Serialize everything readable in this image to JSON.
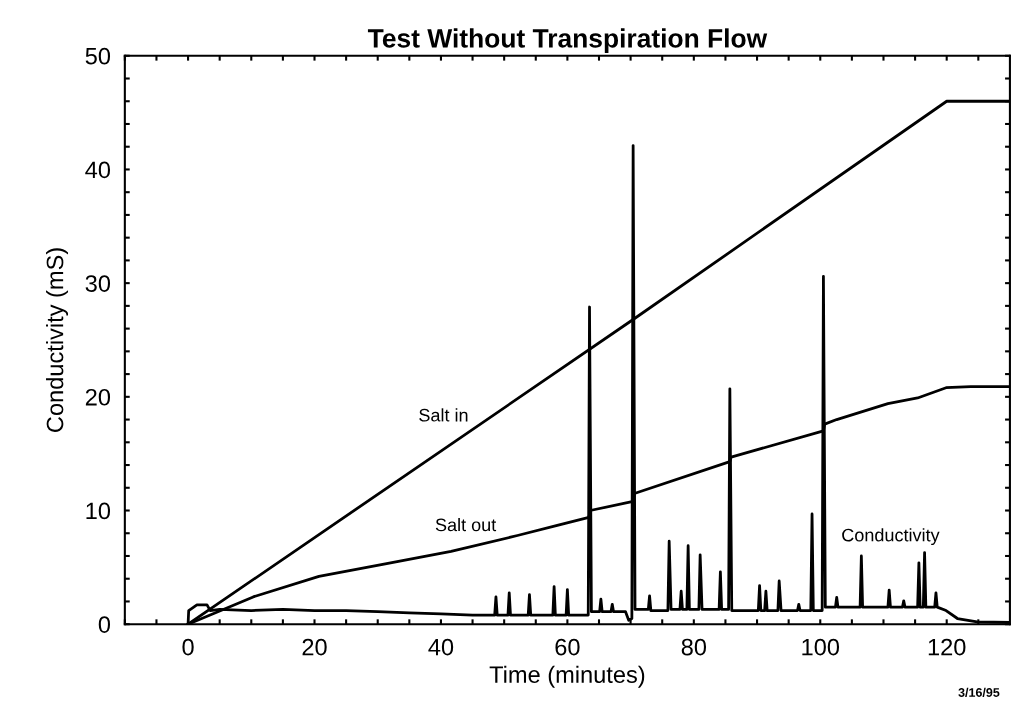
{
  "chart_data": {
    "type": "line",
    "title": "Test Without Transpiration Flow",
    "xlabel": "Time (minutes)",
    "ylabel": "Conductivity (mS)",
    "xlim": [
      -10,
      130
    ],
    "ylim": [
      0,
      50
    ],
    "xticks": [
      {
        "value": -10,
        "label": null
      },
      {
        "value": -5,
        "label": null
      },
      0,
      {
        "value": 5,
        "label": null
      },
      {
        "value": 10,
        "label": null
      },
      {
        "value": 15,
        "label": null
      },
      20,
      {
        "value": 25,
        "label": null
      },
      {
        "value": 30,
        "label": null
      },
      {
        "value": 35,
        "label": null
      },
      40,
      {
        "value": 45,
        "label": null
      },
      {
        "value": 50,
        "label": null
      },
      {
        "value": 55,
        "label": null
      },
      60,
      {
        "value": 65,
        "label": null
      },
      {
        "value": 70,
        "label": null
      },
      {
        "value": 75,
        "label": null
      },
      80,
      {
        "value": 85,
        "label": null
      },
      {
        "value": 90,
        "label": null
      },
      {
        "value": 95,
        "label": null
      },
      100,
      {
        "value": 105,
        "label": null
      },
      {
        "value": 110,
        "label": null
      },
      {
        "value": 115,
        "label": null
      },
      120,
      {
        "value": 125,
        "label": null
      }
    ],
    "yticks": [
      0,
      {
        "value": 2,
        "label": null
      },
      {
        "value": 4,
        "label": null
      },
      {
        "value": 6,
        "label": null
      },
      {
        "value": 8,
        "label": null
      },
      10,
      {
        "value": 12,
        "label": null
      },
      {
        "value": 14,
        "label": null
      },
      {
        "value": 16,
        "label": null
      },
      {
        "value": 18,
        "label": null
      },
      20,
      {
        "value": 22,
        "label": null
      },
      {
        "value": 24,
        "label": null
      },
      {
        "value": 26,
        "label": null
      },
      {
        "value": 28,
        "label": null
      },
      30,
      {
        "value": 32,
        "label": null
      },
      {
        "value": 34,
        "label": null
      },
      {
        "value": 36,
        "label": null
      },
      {
        "value": 38,
        "label": null
      },
      40,
      {
        "value": 42,
        "label": null
      },
      {
        "value": 44,
        "label": null
      },
      {
        "value": 46,
        "label": null
      },
      {
        "value": 48,
        "label": null
      },
      50
    ],
    "grid": false,
    "legend": false,
    "marker": "none",
    "line_style": "solid",
    "series": [
      {
        "name": "Salt in",
        "color": "#000000",
        "x": [
          0,
          70.4,
          120,
          130
        ],
        "values": [
          0,
          26.8,
          46,
          46
        ]
      },
      {
        "name": "Salt out",
        "color": "#000000",
        "x": [
          0,
          10.3,
          20.7,
          31.2,
          41.6,
          52.1,
          58.4,
          63.4,
          63.6,
          70.4,
          70.6,
          85.7,
          85.9,
          100.5,
          100.7,
          102.6,
          110.7,
          115.4,
          119.9,
          123.8,
          130
        ],
        "values": [
          0,
          2.4,
          4.2,
          5.3,
          6.4,
          7.8,
          8.7,
          9.4,
          10.0,
          10.8,
          11.5,
          14.3,
          14.7,
          17.0,
          17.6,
          18.0,
          19.4,
          19.9,
          20.8,
          20.9,
          20.9
        ]
      },
      {
        "name": "Conductivity",
        "color": "#000000",
        "x": [
          0,
          0.1,
          1.4,
          3,
          3.5,
          5,
          10,
          15,
          20,
          25,
          30,
          35,
          40,
          45,
          48.5,
          48.7,
          48.9,
          50.6,
          50.8,
          51,
          53.8,
          54,
          54.2,
          57.7,
          57.9,
          58.1,
          59.8,
          60,
          60.2,
          63.3,
          63.5,
          63.8,
          65.1,
          65.3,
          65.5,
          66.9,
          67.1,
          67.3,
          69.2,
          69.7,
          70.2,
          70.4,
          70.7,
          72.8,
          73,
          73.2,
          75.9,
          76.1,
          76.4,
          77.8,
          78,
          78.2,
          78.9,
          79.1,
          79.3,
          80.8,
          81,
          81.3,
          84,
          84.2,
          84.4,
          85.5,
          85.7,
          86,
          90.2,
          90.4,
          90.6,
          91.2,
          91.4,
          91.6,
          93.3,
          93.5,
          93.8,
          96.4,
          96.6,
          96.8,
          98.5,
          98.7,
          98.9,
          100.3,
          100.5,
          100.8,
          102.4,
          102.6,
          102.8,
          106.3,
          106.5,
          106.7,
          110.7,
          110.9,
          111.1,
          113,
          113.2,
          113.4,
          115.4,
          115.6,
          115.8,
          116.3,
          116.5,
          116.7,
          118.1,
          118.3,
          118.5,
          119.9,
          121.7,
          124.8,
          130
        ],
        "values": [
          0,
          1.2,
          1.7,
          1.7,
          1.2,
          1.3,
          1.2,
          1.3,
          1.2,
          1.2,
          1.1,
          1.0,
          0.9,
          0.8,
          0.8,
          2.4,
          0.8,
          0.8,
          2.75,
          0.8,
          0.8,
          2.6,
          0.8,
          0.8,
          3.3,
          0.8,
          0.8,
          3.05,
          0.8,
          0.8,
          27.9,
          1.1,
          1.1,
          2.2,
          1.1,
          1.1,
          1.75,
          1.1,
          1.1,
          0.35,
          0.5,
          42.1,
          1.3,
          1.3,
          2.5,
          1.2,
          1.2,
          7.3,
          1.3,
          1.3,
          2.9,
          1.3,
          1.3,
          6.9,
          1.3,
          1.3,
          6.1,
          1.3,
          1.3,
          4.6,
          1.3,
          1.3,
          20.7,
          1.2,
          1.2,
          3.4,
          1.2,
          1.2,
          2.9,
          1.2,
          1.2,
          3.8,
          1.2,
          1.2,
          1.75,
          1.2,
          1.2,
          9.7,
          1.2,
          1.2,
          30.6,
          1.5,
          1.5,
          2.35,
          1.5,
          1.5,
          6.0,
          1.5,
          1.5,
          3.0,
          1.5,
          1.5,
          2.05,
          1.5,
          1.5,
          5.4,
          1.5,
          1.5,
          6.3,
          1.5,
          1.5,
          2.75,
          1.5,
          1.2,
          0.5,
          0.2,
          0.15
        ]
      }
    ],
    "annotations": [
      "3/16/95"
    ]
  }
}
